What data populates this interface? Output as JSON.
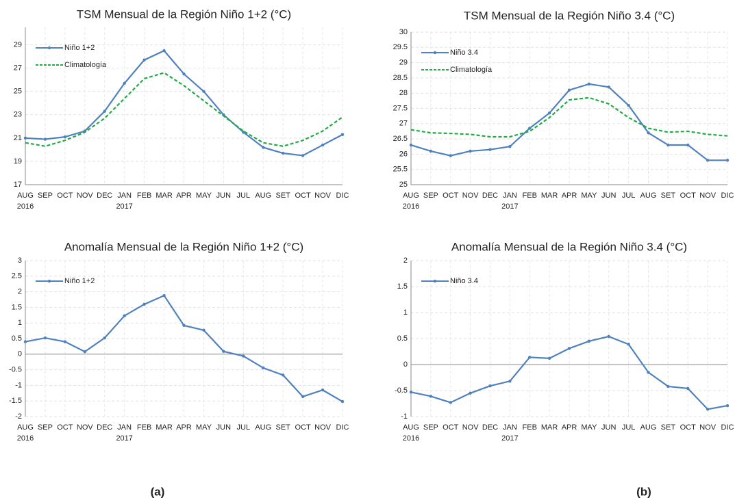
{
  "chart_data": [
    {
      "type": "line",
      "title": "TSM Mensual de la Región Niño 1+2 (°C)",
      "categories": [
        "AUG\n2016",
        "SEP",
        "OCT",
        "NOV",
        "DEC",
        "JAN\n2017",
        "FEB",
        "MAR",
        "APR",
        "MAY",
        "JUN",
        "JUL",
        "AUG",
        "SET",
        "OCT",
        "NOV",
        "DIC"
      ],
      "series": [
        {
          "name": "Niño 1+2",
          "color": "#4f81bd",
          "markers": true,
          "values": [
            21.0,
            20.9,
            21.1,
            21.6,
            23.3,
            25.7,
            27.7,
            28.5,
            26.5,
            25.0,
            23.0,
            21.5,
            20.2,
            19.7,
            19.5,
            20.4,
            21.3
          ]
        },
        {
          "name": "Climatología",
          "color": "#22aa44",
          "dashed": true,
          "values": [
            20.6,
            20.3,
            20.8,
            21.5,
            22.7,
            24.4,
            26.1,
            26.6,
            25.5,
            24.2,
            22.9,
            21.6,
            20.6,
            20.3,
            20.8,
            21.6,
            22.8
          ]
        }
      ],
      "ylim": [
        17,
        30.5
      ],
      "yticks": [
        17,
        19,
        21,
        23,
        25,
        27,
        29
      ],
      "grid": true,
      "legend": "upper-left"
    },
    {
      "type": "line",
      "title": "TSM Mensual de la Región Niño 3.4 (°C)",
      "categories": [
        "AUG\n2016",
        "SEP",
        "OCT",
        "NOV",
        "DEC",
        "JAN\n2017",
        "FEB",
        "MAR",
        "APR",
        "MAY",
        "JUN",
        "JUL",
        "AUG",
        "SET",
        "OCT",
        "NOV",
        "DIC"
      ],
      "series": [
        {
          "name": "Niño 3.4",
          "color": "#4f81bd",
          "markers": true,
          "values": [
            26.3,
            26.1,
            25.95,
            26.1,
            26.15,
            26.25,
            26.85,
            27.35,
            28.1,
            28.3,
            28.2,
            27.6,
            26.7,
            26.3,
            26.3,
            25.8,
            25.8
          ]
        },
        {
          "name": "Climatología",
          "color": "#22aa44",
          "dashed": true,
          "values": [
            26.8,
            26.7,
            26.68,
            26.65,
            26.57,
            26.57,
            26.75,
            27.2,
            27.78,
            27.85,
            27.65,
            27.2,
            26.85,
            26.72,
            26.75,
            26.65,
            26.6
          ]
        }
      ],
      "ylim": [
        25,
        30
      ],
      "yticks": [
        25,
        25.5,
        26,
        26.5,
        27,
        27.5,
        28,
        28.5,
        29,
        29.5,
        30
      ],
      "grid": true,
      "legend": "upper-left"
    },
    {
      "type": "line",
      "title": "Anomalía Mensual de la Región Niño 1+2 (°C)",
      "categories": [
        "AUG\n2016",
        "SEP",
        "OCT",
        "NOV",
        "DEC",
        "JAN\n2017",
        "FEB",
        "MAR",
        "APR",
        "MAY",
        "JUN",
        "JUL",
        "AUG",
        "SET",
        "OCT",
        "NOV",
        "DIC"
      ],
      "series": [
        {
          "name": "Niño 1+2",
          "color": "#4f81bd",
          "markers": true,
          "values": [
            0.4,
            0.52,
            0.4,
            0.08,
            0.52,
            1.23,
            1.6,
            1.88,
            0.92,
            0.77,
            0.09,
            -0.06,
            -0.44,
            -0.67,
            -1.36,
            -1.15,
            -1.52
          ]
        }
      ],
      "ylim": [
        -2,
        3
      ],
      "yticks": [
        -2,
        -1.5,
        -1,
        -0.5,
        0,
        0.5,
        1,
        1.5,
        2,
        2.5,
        3
      ],
      "grid": true,
      "legend": "upper-left"
    },
    {
      "type": "line",
      "title": "Anomalía Mensual de la Región Niño 3.4 (°C)",
      "categories": [
        "AUG\n2016",
        "SEP",
        "OCT",
        "NOV",
        "DEC",
        "JAN\n2017",
        "FEB",
        "MAR",
        "APR",
        "MAY",
        "JUN",
        "JUL",
        "AUG",
        "SET",
        "OCT",
        "NOV",
        "DIC"
      ],
      "series": [
        {
          "name": "Niño 3.4",
          "color": "#4f81bd",
          "markers": true,
          "values": [
            -0.53,
            -0.61,
            -0.73,
            -0.55,
            -0.41,
            -0.32,
            0.14,
            0.12,
            0.31,
            0.45,
            0.54,
            0.39,
            -0.15,
            -0.42,
            -0.46,
            -0.86,
            -0.79
          ]
        }
      ],
      "ylim": [
        -1,
        2
      ],
      "yticks": [
        -1,
        -0.5,
        0,
        0.5,
        1,
        1.5,
        2
      ],
      "grid": true,
      "legend": "upper-left"
    }
  ],
  "captions": [
    "(a)",
    "(b)"
  ]
}
